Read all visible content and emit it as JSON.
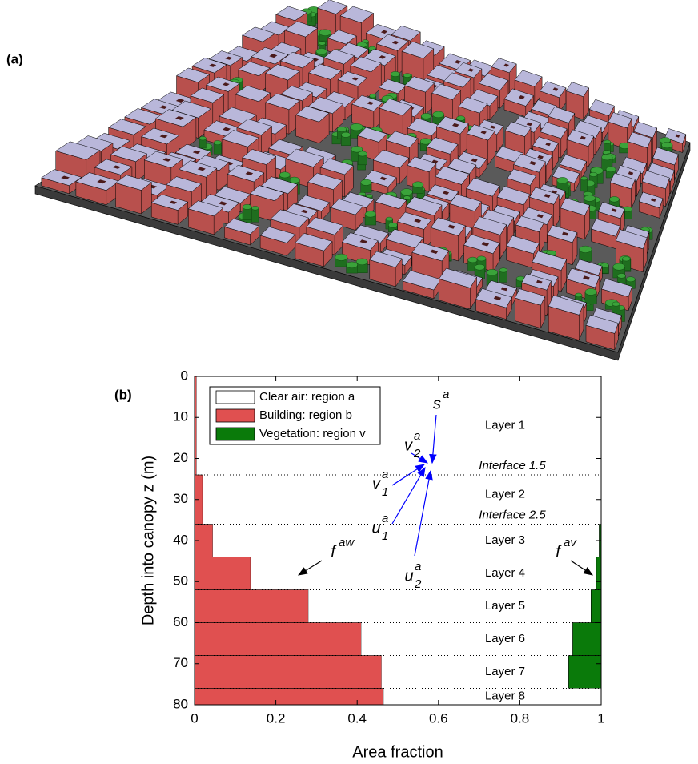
{
  "panel_labels": [
    "(a)",
    "(b)"
  ],
  "chart_data": {
    "type": "hbar-profile",
    "xlabel": "Area fraction",
    "ylabel": "Depth into canopy z (m)",
    "xlim": [
      0,
      1
    ],
    "xticks": [
      0,
      0.2,
      0.4,
      0.6,
      0.8,
      1
    ],
    "ylim": [
      0,
      80
    ],
    "yticks": [
      0,
      10,
      20,
      30,
      40,
      50,
      60,
      70,
      80
    ],
    "bins": [
      0,
      24,
      36,
      44,
      52,
      60,
      68,
      76,
      80
    ],
    "categories": [
      "Layer 1",
      "Layer 2",
      "Layer 3",
      "Layer 4",
      "Layer 5",
      "Layer 6",
      "Layer 7",
      "Layer 8"
    ],
    "series": [
      {
        "name": "Building: region b",
        "color": "#e05050",
        "values": [
          0.005,
          0.02,
          0.045,
          0.138,
          0.28,
          0.41,
          0.46,
          0.465
        ]
      },
      {
        "name": "Clear air: region a",
        "color": "#ffffff",
        "values": [
          0.995,
          0.98,
          0.95,
          0.85,
          0.695,
          0.52,
          0.46,
          0.535
        ]
      },
      {
        "name": "Vegetation: region v",
        "color": "#0a7a0a",
        "values": [
          0,
          0,
          0.005,
          0.012,
          0.025,
          0.07,
          0.08,
          0
        ]
      }
    ],
    "legend_order": [
      1,
      0,
      2
    ],
    "interfaces": [
      "Interface 1.5",
      "Interface 2.5"
    ],
    "annotations": [
      {
        "base": "f",
        "sup": "aw",
        "color": "#000000"
      },
      {
        "base": "f",
        "sup": "av",
        "color": "#000000"
      },
      {
        "base": "s",
        "sup": "a",
        "color": "#0000ff"
      },
      {
        "base": "v",
        "sup": "a",
        "sub": "2",
        "color": "#0000ff"
      },
      {
        "base": "v",
        "sup": "a",
        "sub": "1",
        "color": "#0000ff"
      },
      {
        "base": "u",
        "sup": "a",
        "sub": "1",
        "color": "#0000ff"
      },
      {
        "base": "u",
        "sup": "a",
        "sub": "2",
        "color": "#0000ff"
      }
    ]
  }
}
